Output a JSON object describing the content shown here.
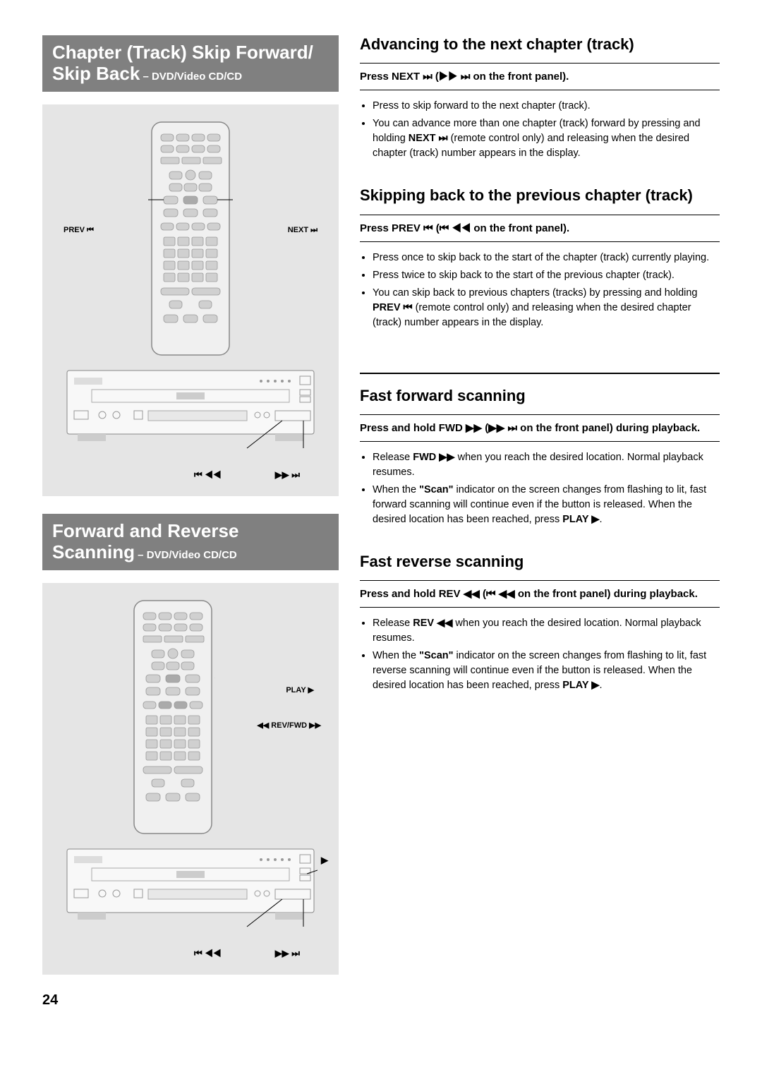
{
  "page_number": "24",
  "titles": {
    "skip": {
      "line1": "Chapter (Track) Skip Forward/",
      "line2_a": "Skip Back",
      "line2_b": " – DVD/Video CD/CD"
    },
    "scan": {
      "line1": "Forward and Reverse",
      "line2_a": "Scanning",
      "line2_b": " – DVD/Video CD/CD"
    }
  },
  "remote_labels": {
    "prev": "PREV ⏮",
    "next": "NEXT ⏭",
    "play": "PLAY ▶",
    "revfwd": "◀◀ REV/FWD ▶▶"
  },
  "panel_labels": {
    "left": "⏮ ◀◀",
    "right": "▶▶ ⏭",
    "play_right": "▶"
  },
  "sections": {
    "advancing": {
      "heading": "Advancing to the next chapter (track)",
      "instruction_parts": [
        "Press NEXT ",
        "⏭",
        " (",
        "▶▶ ⏭",
        " on the front panel)."
      ],
      "bullets": [
        {
          "plain": "Press to skip forward to the next chapter (track)."
        },
        {
          "html": "You can advance more than one chapter (track) forward by pressing and holding <b>NEXT ⏭</b> (remote control only) and releasing when the desired chapter (track) number appears in the display."
        }
      ]
    },
    "skipping_back": {
      "heading": "Skipping back to the previous chapter (track)",
      "instruction_parts": [
        "Press PREV ",
        "⏮",
        " (",
        "⏮ ◀◀",
        " on the front panel)."
      ],
      "bullets": [
        {
          "plain": "Press once to skip back to the start of the chapter (track) currently playing."
        },
        {
          "plain": "Press twice to skip back to the start of the previous chapter (track)."
        },
        {
          "html": "You can skip back to previous chapters (tracks) by pressing and holding <b>PREV ⏮</b> (remote control only) and releasing when the desired chapter (track) number appears in the display."
        }
      ]
    },
    "fast_forward": {
      "heading": "Fast forward scanning",
      "instruction_parts": [
        "Press and hold FWD ",
        "▶▶",
        " (",
        "▶▶ ⏭",
        " on the front panel) during playback."
      ],
      "bullets": [
        {
          "html": "Release <b>FWD ▶▶</b> when you reach the desired location. Normal playback resumes."
        },
        {
          "html": "When the <b>\"Scan\"</b> indicator on the screen changes from flashing to lit, fast forward scanning will continue even if the button is released. When the desired location has been reached, press <b>PLAY ▶</b>."
        }
      ]
    },
    "fast_reverse": {
      "heading": "Fast reverse scanning",
      "instruction_parts": [
        "Press and hold REV ",
        "◀◀",
        " (",
        "⏮ ◀◀",
        " on the front panel) during playback."
      ],
      "bullets": [
        {
          "html": "Release <b>REV ◀◀</b> when you reach the desired location. Normal playback resumes."
        },
        {
          "html": "When the <b>\"Scan\"</b> indicator on the screen changes from flashing to lit, fast reverse scanning will continue even if the button is released. When the desired location has been reached, press <b>PLAY ▶</b>."
        }
      ]
    }
  },
  "colors": {
    "title_bg": "#808080",
    "diagram_bg": "#e5e5e5",
    "text": "#000000",
    "page_bg": "#ffffff"
  }
}
